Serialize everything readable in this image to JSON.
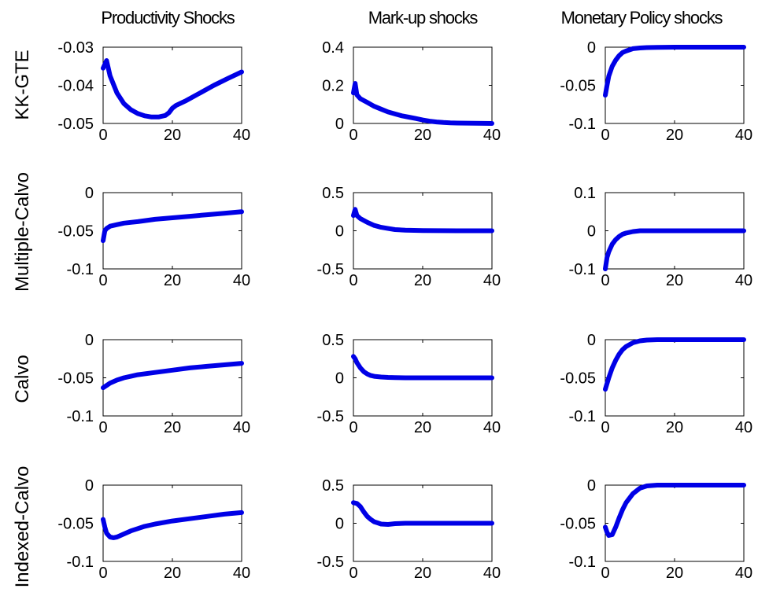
{
  "figure": {
    "column_titles": [
      "Productivity Shocks",
      "Mark-up shocks",
      "Monetary Policy shocks"
    ],
    "row_labels": [
      "KK-GTE",
      "Multiple-Calvo",
      "Calvo",
      "Indexed-Calvo"
    ],
    "line_color": "#0000e6"
  },
  "chart_data": [
    {
      "type": "line",
      "row": 0,
      "col": 0,
      "xlim": [
        0,
        40
      ],
      "ylim": [
        -0.05,
        -0.03
      ],
      "xticks": [
        0,
        20,
        40
      ],
      "xtick_labels": [
        "0",
        "20",
        "40"
      ],
      "yticks": [
        -0.05,
        -0.04,
        -0.03
      ],
      "ytick_labels": [
        "-0.05",
        "-0.04",
        "-0.03"
      ],
      "series": [
        {
          "x": [
            0,
            1,
            2,
            4,
            6,
            8,
            10,
            12,
            14,
            16,
            18,
            19,
            20,
            21,
            24,
            28,
            32,
            36,
            40
          ],
          "y": [
            -0.0355,
            -0.0335,
            -0.0375,
            -0.042,
            -0.0448,
            -0.0464,
            -0.0474,
            -0.048,
            -0.0483,
            -0.0483,
            -0.0479,
            -0.0472,
            -0.046,
            -0.0453,
            -0.044,
            -0.042,
            -0.04,
            -0.0382,
            -0.0365
          ]
        }
      ]
    },
    {
      "type": "line",
      "row": 0,
      "col": 1,
      "xlim": [
        0,
        40
      ],
      "ylim": [
        0,
        0.4
      ],
      "xticks": [
        0,
        20,
        40
      ],
      "xtick_labels": [
        "0",
        "20",
        "40"
      ],
      "yticks": [
        0,
        0.2,
        0.4
      ],
      "ytick_labels": [
        "0",
        "0.2",
        "0.4"
      ],
      "series": [
        {
          "x": [
            0,
            0.5,
            1,
            2,
            4,
            6,
            8,
            10,
            12,
            14,
            16,
            18,
            20,
            22,
            24,
            26,
            28,
            30,
            35,
            40
          ],
          "y": [
            0.16,
            0.21,
            0.15,
            0.13,
            0.11,
            0.09,
            0.075,
            0.06,
            0.05,
            0.04,
            0.033,
            0.026,
            0.018,
            0.012,
            0.008,
            0.005,
            0.003,
            0.002,
            0.001,
            0.0
          ]
        }
      ]
    },
    {
      "type": "line",
      "row": 0,
      "col": 2,
      "xlim": [
        0,
        40
      ],
      "ylim": [
        -0.1,
        0
      ],
      "xticks": [
        0,
        20,
        40
      ],
      "xtick_labels": [
        "0",
        "20",
        "40"
      ],
      "yticks": [
        -0.1,
        -0.05,
        0
      ],
      "ytick_labels": [
        "-0.1",
        "-0.05",
        "0"
      ],
      "series": [
        {
          "x": [
            0,
            0.5,
            1,
            2,
            3,
            4,
            5,
            6,
            8,
            10,
            12,
            15,
            20,
            25,
            30,
            35,
            40
          ],
          "y": [
            -0.063,
            -0.05,
            -0.038,
            -0.025,
            -0.017,
            -0.011,
            -0.007,
            -0.005,
            -0.002,
            -0.001,
            -0.0005,
            -0.0002,
            0,
            0,
            0,
            0,
            0
          ]
        }
      ]
    },
    {
      "type": "line",
      "row": 1,
      "col": 0,
      "xlim": [
        0,
        40
      ],
      "ylim": [
        -0.1,
        0
      ],
      "xticks": [
        0,
        20,
        40
      ],
      "xtick_labels": [
        "0",
        "20",
        "40"
      ],
      "yticks": [
        -0.1,
        -0.05,
        0
      ],
      "ytick_labels": [
        "-0.1",
        "-0.05",
        "0"
      ],
      "series": [
        {
          "x": [
            0,
            0.5,
            1,
            2,
            4,
            6,
            8,
            10,
            15,
            20,
            25,
            30,
            35,
            40
          ],
          "y": [
            -0.063,
            -0.05,
            -0.047,
            -0.044,
            -0.042,
            -0.04,
            -0.039,
            -0.038,
            -0.035,
            -0.033,
            -0.031,
            -0.029,
            -0.027,
            -0.025
          ]
        }
      ]
    },
    {
      "type": "line",
      "row": 1,
      "col": 1,
      "xlim": [
        0,
        40
      ],
      "ylim": [
        -0.5,
        0.5
      ],
      "xticks": [
        0,
        20,
        40
      ],
      "xtick_labels": [
        "0",
        "20",
        "40"
      ],
      "yticks": [
        -0.5,
        0,
        0.5
      ],
      "ytick_labels": [
        "-0.5",
        "0",
        "0.5"
      ],
      "series": [
        {
          "x": [
            0,
            0.5,
            1,
            2,
            4,
            6,
            8,
            10,
            12,
            15,
            20,
            25,
            30,
            35,
            40
          ],
          "y": [
            0.2,
            0.28,
            0.2,
            0.16,
            0.11,
            0.07,
            0.045,
            0.03,
            0.015,
            0.008,
            0.003,
            0.001,
            0.0,
            0.0,
            0.0
          ]
        }
      ]
    },
    {
      "type": "line",
      "row": 1,
      "col": 2,
      "xlim": [
        0,
        40
      ],
      "ylim": [
        -0.1,
        0.1
      ],
      "xticks": [
        0,
        20,
        40
      ],
      "xtick_labels": [
        "0",
        "20",
        "40"
      ],
      "yticks": [
        -0.1,
        0,
        0.1
      ],
      "ytick_labels": [
        "-0.1",
        "0",
        "0.1"
      ],
      "series": [
        {
          "x": [
            0,
            0.5,
            1,
            2,
            3,
            4,
            5,
            6,
            8,
            10,
            12,
            15,
            20,
            25,
            30,
            35,
            40
          ],
          "y": [
            -0.1,
            -0.07,
            -0.055,
            -0.035,
            -0.023,
            -0.015,
            -0.009,
            -0.006,
            -0.002,
            0.0,
            0.0,
            0.0,
            0.0,
            0.0,
            0.0,
            0.0,
            0.0
          ]
        }
      ]
    },
    {
      "type": "line",
      "row": 2,
      "col": 0,
      "xlim": [
        0,
        40
      ],
      "ylim": [
        -0.1,
        0
      ],
      "xticks": [
        0,
        20,
        40
      ],
      "xtick_labels": [
        "0",
        "20",
        "40"
      ],
      "yticks": [
        -0.1,
        -0.05,
        0
      ],
      "ytick_labels": [
        "-0.1",
        "-0.05",
        "0"
      ],
      "series": [
        {
          "x": [
            0,
            1,
            2,
            4,
            6,
            8,
            10,
            15,
            20,
            25,
            30,
            35,
            40
          ],
          "y": [
            -0.063,
            -0.06,
            -0.057,
            -0.053,
            -0.05,
            -0.048,
            -0.046,
            -0.043,
            -0.04,
            -0.037,
            -0.035,
            -0.033,
            -0.031
          ]
        }
      ]
    },
    {
      "type": "line",
      "row": 2,
      "col": 1,
      "xlim": [
        0,
        40
      ],
      "ylim": [
        -0.5,
        0.5
      ],
      "xticks": [
        0,
        20,
        40
      ],
      "xtick_labels": [
        "0",
        "20",
        "40"
      ],
      "yticks": [
        -0.5,
        0,
        0.5
      ],
      "ytick_labels": [
        "-0.5",
        "0",
        "0.5"
      ],
      "series": [
        {
          "x": [
            0,
            0.5,
            1,
            2,
            3,
            4,
            5,
            6,
            8,
            10,
            12,
            15,
            20,
            25,
            30,
            35,
            40
          ],
          "y": [
            0.28,
            0.25,
            0.2,
            0.13,
            0.08,
            0.05,
            0.03,
            0.02,
            0.01,
            0.005,
            0.002,
            0.0,
            0.0,
            0.0,
            0.0,
            0.0,
            0.0
          ]
        }
      ]
    },
    {
      "type": "line",
      "row": 2,
      "col": 2,
      "xlim": [
        0,
        40
      ],
      "ylim": [
        -0.1,
        0
      ],
      "xticks": [
        0,
        20,
        40
      ],
      "xtick_labels": [
        "0",
        "20",
        "40"
      ],
      "yticks": [
        -0.1,
        -0.05,
        0
      ],
      "ytick_labels": [
        "-0.1",
        "-0.05",
        "0"
      ],
      "series": [
        {
          "x": [
            0,
            1,
            2,
            3,
            4,
            5,
            6,
            8,
            10,
            12,
            15,
            20,
            25,
            30,
            35,
            40
          ],
          "y": [
            -0.065,
            -0.05,
            -0.037,
            -0.027,
            -0.019,
            -0.013,
            -0.009,
            -0.004,
            -0.0015,
            -0.0005,
            0.0,
            0.0,
            0.0,
            0.0,
            0.0,
            0.0
          ]
        }
      ]
    },
    {
      "type": "line",
      "row": 3,
      "col": 0,
      "xlim": [
        0,
        40
      ],
      "ylim": [
        -0.1,
        0
      ],
      "xticks": [
        0,
        20,
        40
      ],
      "xtick_labels": [
        "0",
        "20",
        "40"
      ],
      "yticks": [
        -0.1,
        -0.05,
        0
      ],
      "ytick_labels": [
        "-0.1",
        "-0.05",
        "0"
      ],
      "series": [
        {
          "x": [
            0,
            0.5,
            1,
            2,
            3,
            4,
            6,
            8,
            10,
            12,
            15,
            20,
            25,
            30,
            35,
            40
          ],
          "y": [
            -0.045,
            -0.055,
            -0.063,
            -0.068,
            -0.069,
            -0.068,
            -0.064,
            -0.06,
            -0.057,
            -0.054,
            -0.051,
            -0.047,
            -0.044,
            -0.041,
            -0.038,
            -0.036
          ]
        }
      ]
    },
    {
      "type": "line",
      "row": 3,
      "col": 1,
      "xlim": [
        0,
        40
      ],
      "ylim": [
        -0.5,
        0.5
      ],
      "xticks": [
        0,
        20,
        40
      ],
      "xtick_labels": [
        "0",
        "20",
        "40"
      ],
      "yticks": [
        -0.5,
        0,
        0.5
      ],
      "ytick_labels": [
        "-0.5",
        "0",
        "0.5"
      ],
      "series": [
        {
          "x": [
            0,
            1,
            2,
            3,
            4,
            5,
            6,
            7,
            8,
            10,
            12,
            15,
            20,
            25,
            30,
            35,
            40
          ],
          "y": [
            0.27,
            0.26,
            0.22,
            0.15,
            0.09,
            0.05,
            0.02,
            0.005,
            -0.01,
            -0.015,
            -0.005,
            0.0,
            0.0,
            0.0,
            0.0,
            0.0,
            0.0
          ]
        }
      ]
    },
    {
      "type": "line",
      "row": 3,
      "col": 2,
      "xlim": [
        0,
        40
      ],
      "ylim": [
        -0.1,
        0
      ],
      "xticks": [
        0,
        20,
        40
      ],
      "xtick_labels": [
        "0",
        "20",
        "40"
      ],
      "yticks": [
        -0.1,
        -0.05,
        0
      ],
      "ytick_labels": [
        "-0.1",
        "-0.05",
        "0"
      ],
      "series": [
        {
          "x": [
            0,
            0.5,
            1,
            2,
            3,
            4,
            5,
            6,
            8,
            10,
            12,
            15,
            20,
            25,
            30,
            35,
            40
          ],
          "y": [
            -0.055,
            -0.062,
            -0.066,
            -0.065,
            -0.055,
            -0.043,
            -0.032,
            -0.023,
            -0.011,
            -0.004,
            -0.001,
            0.0,
            0.0,
            0.0,
            0.0,
            0.0,
            0.0
          ]
        }
      ]
    }
  ]
}
